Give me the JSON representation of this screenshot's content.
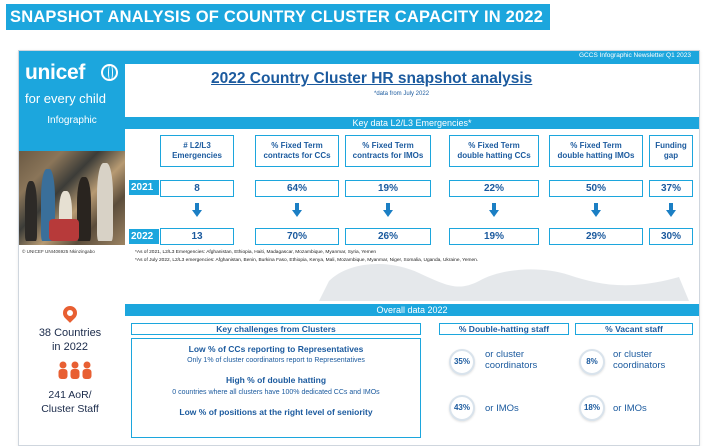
{
  "banner": "SNAPSHOT ANALYSIS OF COUNTRY CLUSTER CAPACITY IN 2022",
  "newsletter": "GCCS Infographic Newsletter Q1 2023",
  "brand": {
    "name": "unicef",
    "tagline": "for every child",
    "label": "Infographic",
    "photo_credit": "© UNICEF UNI406925 Nkinzingabo"
  },
  "title": "2022 Country Cluster HR snapshot analysis",
  "date_note": "*data from July 2022",
  "key_data": {
    "header": "Key data L2/L3 Emergencies*",
    "columns": [
      {
        "label": "# L2/L3\nEmergencies",
        "v2021": "8",
        "v2022": "13"
      },
      {
        "label": "% Fixed Term\ncontracts for CCs",
        "v2021": "64%",
        "v2022": "70%"
      },
      {
        "label": "% Fixed Term\ncontracts for IMOs",
        "v2021": "19%",
        "v2022": "26%"
      },
      {
        "label": "% Fixed Term\ndouble hatting CCs",
        "v2021": "22%",
        "v2022": "19%"
      },
      {
        "label": "% Fixed Term\ndouble hatting IMOs",
        "v2021": "50%",
        "v2022": "29%"
      },
      {
        "label": "Funding\ngap",
        "v2021": "37%",
        "v2022": "30%"
      }
    ],
    "year1": "2021",
    "year2": "2022",
    "note1": "*As of 2021, L2/L3 Emergencies: Afghanistan, Ethiopia, Haiti, Madagascar, Mozambique, Myanmar, Syria, Yemen",
    "note2": "*As of July 2022, L2/L3 emergencies: Afghanistan, Benin, Burkina Faso, Ethiopia, Kenya, Mali, Mozambique, Myanmar, Niger, Somalia, Uganda, Ukraine, Yemen."
  },
  "overall": {
    "header": "Overall data 2022",
    "countries": "38 Countries\nin 2022",
    "staff": "241 AoR/\nCluster Staff",
    "challenges": {
      "header": "Key challenges from Clusters",
      "items": [
        {
          "head": "Low % of CCs reporting to Representatives",
          "sub": "Only 1% of cluster coordinators report to Representatives"
        },
        {
          "head": "High % of double hatting",
          "sub": "0 countries where all clusters have 100% dedicated CCs and IMOs"
        },
        {
          "head": "Low % of positions at the right level of seniority",
          "sub": ""
        }
      ]
    },
    "double_hatting": {
      "header": "% Double-hatting staff",
      "cc_value": "35%",
      "cc_label": "or cluster\ncoordinators",
      "imo_value": "43%",
      "imo_label": "or IMOs"
    },
    "vacant": {
      "header": "% Vacant staff",
      "cc_value": "8%",
      "cc_label": "or cluster\ncoordinators",
      "imo_value": "18%",
      "imo_label": "or IMOs"
    }
  },
  "colors": {
    "accent": "#1ca6dd",
    "navy": "#1b5a9e",
    "pin": "#e85f32"
  }
}
